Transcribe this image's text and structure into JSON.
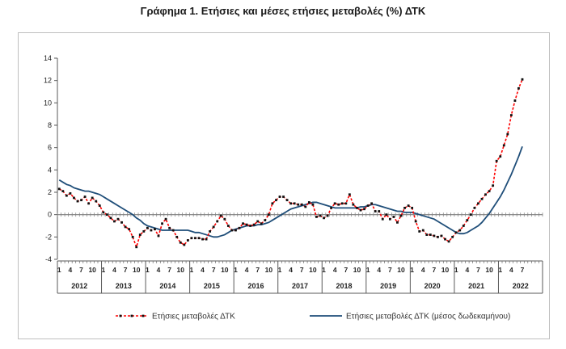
{
  "title": "Γράφημα 1. Ετήσιες και μέσες ετήσιες μεταβολές (%) ΔΤΚ",
  "chart_data": {
    "type": "line",
    "title": "Γράφημα 1. Ετήσιες και μέσες ετήσιες μεταβολές (%) ΔΤΚ",
    "ylim": [
      -4,
      14
    ],
    "yticks": [
      "14",
      "12",
      "10",
      "8",
      "6",
      "4",
      "2",
      "0",
      "-2",
      "-4"
    ],
    "month_ticks": [
      "1",
      "4",
      "7",
      "10"
    ],
    "years": [
      "2012",
      "2013",
      "2014",
      "2015",
      "2016",
      "2017",
      "2018",
      "2019",
      "2020",
      "2021",
      "2022"
    ],
    "grid": false,
    "legend": "bottom",
    "colors": {
      "annual": "#ff0000",
      "average": "#1f4e79",
      "zero_line": "#7f7f7f"
    },
    "series": [
      {
        "name": "Ετήσιες μεταβολές ΔΤΚ",
        "style": "dashed-red-with-black-markers",
        "values": [
          2.3,
          2.1,
          1.7,
          1.9,
          1.5,
          1.2,
          1.3,
          1.6,
          1.0,
          1.5,
          1.2,
          0.8,
          0.2,
          0.0,
          -0.3,
          -0.6,
          -0.4,
          -0.7,
          -1.1,
          -1.3,
          -2.0,
          -2.9,
          -1.8,
          -1.5,
          -1.2,
          -1.4,
          -1.3,
          -1.9,
          -0.8,
          -0.4,
          -1.2,
          -1.4,
          -2.0,
          -2.5,
          -2.7,
          -2.3,
          -2.1,
          -2.1,
          -2.1,
          -2.2,
          -2.2,
          -1.5,
          -1.1,
          -0.6,
          -0.1,
          -0.4,
          -1.0,
          -1.4,
          -1.4,
          -1.2,
          -0.8,
          -0.9,
          -1.0,
          -0.9,
          -0.6,
          -0.8,
          -0.5,
          0.0,
          1.0,
          1.3,
          1.6,
          1.6,
          1.3,
          1.0,
          1.0,
          0.9,
          0.9,
          0.7,
          1.1,
          0.9,
          -0.2,
          -0.1,
          -0.3,
          -0.1,
          0.6,
          1.0,
          0.9,
          1.0,
          1.0,
          1.8,
          0.9,
          0.6,
          0.4,
          0.5,
          0.8,
          1.0,
          0.3,
          0.3,
          -0.4,
          0.0,
          -0.4,
          -0.2,
          -0.7,
          -0.1,
          0.6,
          0.8,
          0.6,
          -0.6,
          -1.5,
          -1.4,
          -1.8,
          -1.8,
          -1.9,
          -2.0,
          -1.9,
          -2.2,
          -2.4,
          -2.0,
          -1.6,
          -1.4,
          -1.0,
          -0.5,
          0.0,
          0.6,
          1.0,
          1.4,
          1.8,
          2.1,
          2.6,
          4.8,
          5.2,
          6.2,
          7.2,
          8.9,
          10.2,
          11.3,
          12.1
        ]
      },
      {
        "name": "Ετήσιες μεταβολές ΔΤΚ (μέσος δωδεκαμήνου)",
        "style": "solid-blue",
        "values": [
          3.1,
          2.9,
          2.7,
          2.6,
          2.4,
          2.3,
          2.2,
          2.1,
          2.1,
          2.0,
          1.9,
          1.8,
          1.6,
          1.4,
          1.2,
          1.0,
          0.8,
          0.6,
          0.4,
          0.2,
          0.0,
          -0.3,
          -0.5,
          -0.8,
          -1.0,
          -1.1,
          -1.2,
          -1.3,
          -1.4,
          -1.4,
          -1.4,
          -1.4,
          -1.4,
          -1.4,
          -1.4,
          -1.4,
          -1.5,
          -1.6,
          -1.6,
          -1.7,
          -1.8,
          -1.9,
          -2.0,
          -2.0,
          -1.9,
          -1.8,
          -1.6,
          -1.4,
          -1.3,
          -1.2,
          -1.1,
          -1.0,
          -1.0,
          -1.0,
          -0.9,
          -0.9,
          -0.8,
          -0.7,
          -0.5,
          -0.3,
          -0.1,
          0.1,
          0.3,
          0.5,
          0.6,
          0.7,
          0.8,
          0.9,
          1.0,
          1.1,
          1.1,
          1.0,
          0.9,
          0.8,
          0.7,
          0.6,
          0.6,
          0.6,
          0.6,
          0.6,
          0.6,
          0.6,
          0.7,
          0.7,
          0.8,
          0.9,
          0.9,
          0.8,
          0.7,
          0.6,
          0.5,
          0.4,
          0.3,
          0.3,
          0.2,
          0.2,
          0.2,
          0.1,
          0.0,
          -0.1,
          -0.2,
          -0.3,
          -0.4,
          -0.6,
          -0.8,
          -1.0,
          -1.2,
          -1.4,
          -1.6,
          -1.7,
          -1.7,
          -1.6,
          -1.4,
          -1.2,
          -1.0,
          -0.7,
          -0.3,
          0.1,
          0.6,
          1.1,
          1.6,
          2.2,
          2.9,
          3.6,
          4.4,
          5.2,
          6.1
        ]
      }
    ]
  }
}
